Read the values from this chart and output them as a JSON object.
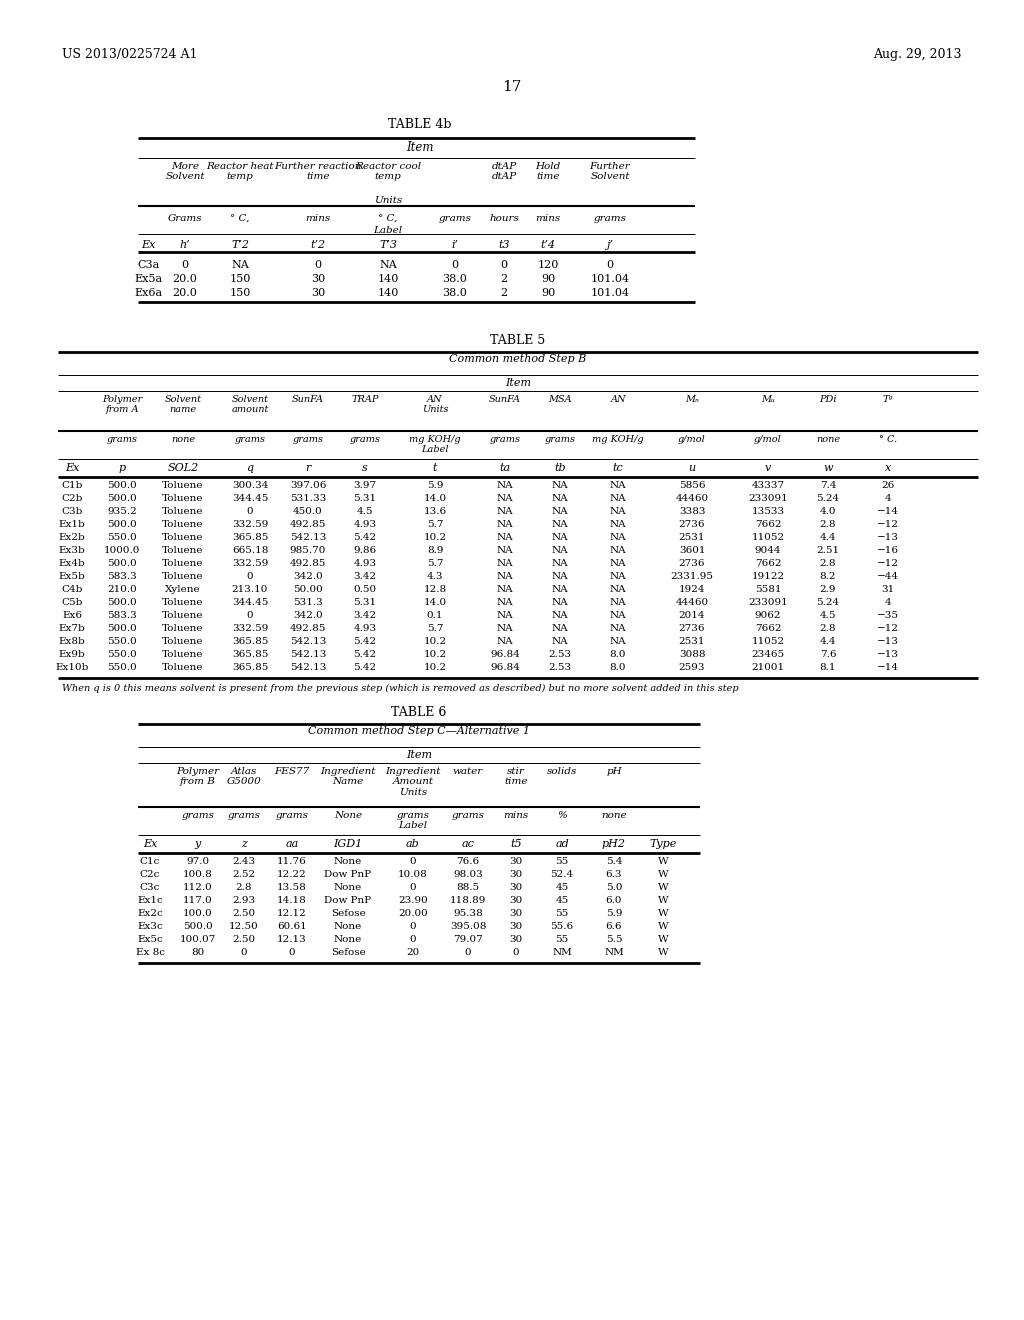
{
  "page_header_left": "US 2013/0225724 A1",
  "page_header_right": "Aug. 29, 2013",
  "page_number": "17",
  "background_color": "#ffffff",
  "table4b": {
    "title": "TABLE 4b",
    "data": [
      [
        "C3a",
        "0",
        "NA",
        "0",
        "NA",
        "0",
        "0",
        "120",
        "0"
      ],
      [
        "Ex5a",
        "20.0",
        "150",
        "30",
        "140",
        "38.0",
        "2",
        "90",
        "101.04"
      ],
      [
        "Ex6a",
        "20.0",
        "150",
        "30",
        "140",
        "38.0",
        "2",
        "90",
        "101.04"
      ]
    ]
  },
  "table5": {
    "title": "TABLE 5",
    "footnote": "When q is 0 this means solvent is present from the previous step (which is removed as described) but no more solvent added in this step",
    "data": [
      [
        "C1b",
        "500.0",
        "Toluene",
        "300.34",
        "397.06",
        "3.97",
        "5.9",
        "NA",
        "NA",
        "NA",
        "5856",
        "43337",
        "7.4",
        "26"
      ],
      [
        "C2b",
        "500.0",
        "Toluene",
        "344.45",
        "531.33",
        "5.31",
        "14.0",
        "NA",
        "NA",
        "NA",
        "44460",
        "233091",
        "5.24",
        "4"
      ],
      [
        "C3b",
        "935.2",
        "Toluene",
        "0",
        "450.0",
        "4.5",
        "13.6",
        "NA",
        "NA",
        "NA",
        "3383",
        "13533",
        "4.0",
        "−14"
      ],
      [
        "Ex1b",
        "500.0",
        "Toluene",
        "332.59",
        "492.85",
        "4.93",
        "5.7",
        "NA",
        "NA",
        "NA",
        "2736",
        "7662",
        "2.8",
        "−12"
      ],
      [
        "Ex2b",
        "550.0",
        "Toluene",
        "365.85",
        "542.13",
        "5.42",
        "10.2",
        "NA",
        "NA",
        "NA",
        "2531",
        "11052",
        "4.4",
        "−13"
      ],
      [
        "Ex3b",
        "1000.0",
        "Toluene",
        "665.18",
        "985.70",
        "9.86",
        "8.9",
        "NA",
        "NA",
        "NA",
        "3601",
        "9044",
        "2.51",
        "−16"
      ],
      [
        "Ex4b",
        "500.0",
        "Toluene",
        "332.59",
        "492.85",
        "4.93",
        "5.7",
        "NA",
        "NA",
        "NA",
        "2736",
        "7662",
        "2.8",
        "−12"
      ],
      [
        "Ex5b",
        "583.3",
        "Toluene",
        "0",
        "342.0",
        "3.42",
        "4.3",
        "NA",
        "NA",
        "NA",
        "2331.95",
        "19122",
        "8.2",
        "−44"
      ],
      [
        "C4b",
        "210.0",
        "Xylene",
        "213.10",
        "50.00",
        "0.50",
        "12.8",
        "NA",
        "NA",
        "NA",
        "1924",
        "5581",
        "2.9",
        "31"
      ],
      [
        "C5b",
        "500.0",
        "Toluene",
        "344.45",
        "531.3",
        "5.31",
        "14.0",
        "NA",
        "NA",
        "NA",
        "44460",
        "233091",
        "5.24",
        "4"
      ],
      [
        "Ex6",
        "583.3",
        "Toluene",
        "0",
        "342.0",
        "3.42",
        "0.1",
        "NA",
        "NA",
        "NA",
        "2014",
        "9062",
        "4.5",
        "−35"
      ],
      [
        "Ex7b",
        "500.0",
        "Toluene",
        "332.59",
        "492.85",
        "4.93",
        "5.7",
        "NA",
        "NA",
        "NA",
        "2736",
        "7662",
        "2.8",
        "−12"
      ],
      [
        "Ex8b",
        "550.0",
        "Toluene",
        "365.85",
        "542.13",
        "5.42",
        "10.2",
        "NA",
        "NA",
        "NA",
        "2531",
        "11052",
        "4.4",
        "−13"
      ],
      [
        "Ex9b",
        "550.0",
        "Toluene",
        "365.85",
        "542.13",
        "5.42",
        "10.2",
        "96.84",
        "2.53",
        "8.0",
        "3088",
        "23465",
        "7.6",
        "−13"
      ],
      [
        "Ex10b",
        "550.0",
        "Toluene",
        "365.85",
        "542.13",
        "5.42",
        "10.2",
        "96.84",
        "2.53",
        "8.0",
        "2593",
        "21001",
        "8.1",
        "−14"
      ]
    ]
  },
  "table6": {
    "title": "TABLE 6",
    "data": [
      [
        "C1c",
        "97.0",
        "2.43",
        "11.76",
        "None",
        "0",
        "76.6",
        "30",
        "55",
        "5.4",
        "W"
      ],
      [
        "C2c",
        "100.8",
        "2.52",
        "12.22",
        "Dow PnP",
        "10.08",
        "98.03",
        "30",
        "52.4",
        "6.3",
        "W"
      ],
      [
        "C3c",
        "112.0",
        "2.8",
        "13.58",
        "None",
        "0",
        "88.5",
        "30",
        "45",
        "5.0",
        "W"
      ],
      [
        "Ex1c",
        "117.0",
        "2.93",
        "14.18",
        "Dow PnP",
        "23.90",
        "118.89",
        "30",
        "45",
        "6.0",
        "W"
      ],
      [
        "Ex2c",
        "100.0",
        "2.50",
        "12.12",
        "Sefose",
        "20.00",
        "95.38",
        "30",
        "55",
        "5.9",
        "W"
      ],
      [
        "Ex3c",
        "500.0",
        "12.50",
        "60.61",
        "None",
        "0",
        "395.08",
        "30",
        "55.6",
        "6.6",
        "W"
      ],
      [
        "Ex5c",
        "100.07",
        "2.50",
        "12.13",
        "None",
        "0",
        "79.07",
        "30",
        "55",
        "5.5",
        "W"
      ],
      [
        "Ex 8c",
        "80",
        "0",
        "0",
        "Sefose",
        "20",
        "0",
        "0",
        "NM",
        "NM",
        "W"
      ]
    ]
  }
}
